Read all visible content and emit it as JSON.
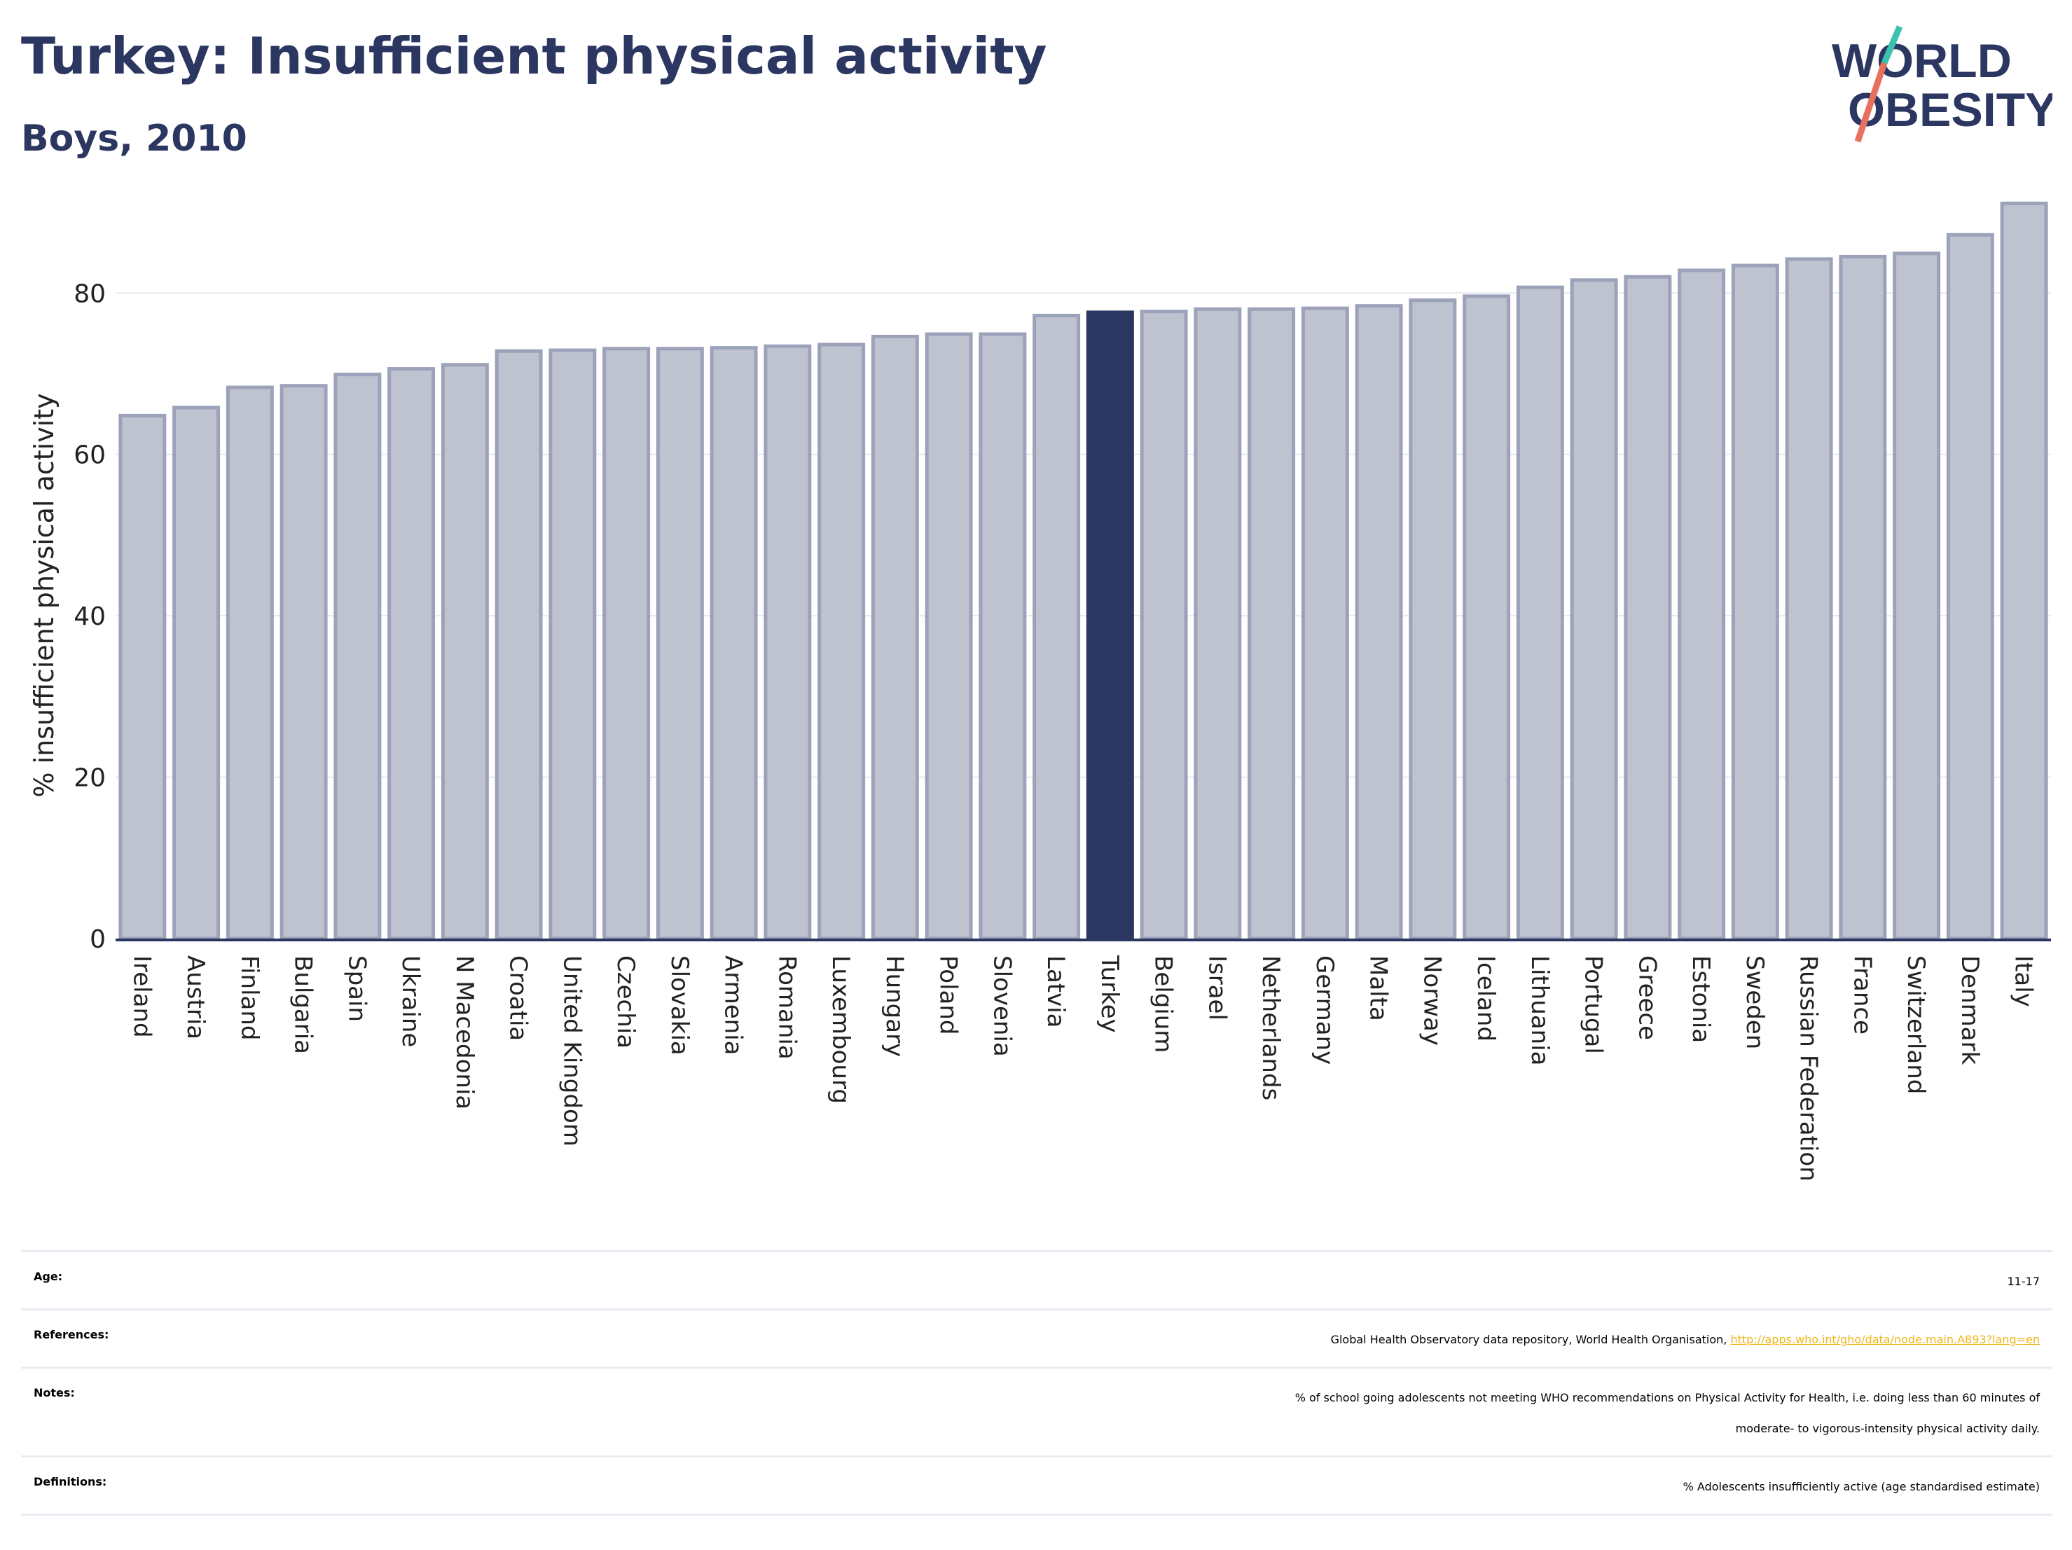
{
  "header": {
    "title": "Turkey: Insufficient physical activity",
    "subtitle": "Boys, 2010",
    "logo_line1": "WORLD",
    "logo_line2": "OBESITY"
  },
  "chart_data": {
    "type": "bar",
    "title": "Turkey: Insufficient physical activity",
    "subtitle": "Boys, 2010",
    "ylabel": "% insufficient physical activity",
    "xlabel": "",
    "ylim": [
      0,
      92
    ],
    "yticks": [
      0,
      20,
      40,
      60,
      80
    ],
    "grid": true,
    "highlight": "Turkey",
    "colors": {
      "bar": "#bfc2cf",
      "bar_border": "#9ca2b9",
      "highlight": "#2b3661",
      "grid": "#e6e8ee",
      "axis": "#2b3661"
    },
    "categories": [
      "Ireland",
      "Austria",
      "Finland",
      "Bulgaria",
      "Spain",
      "Ukraine",
      "N Macedonia",
      "Croatia",
      "United Kingdom",
      "Czechia",
      "Slovakia",
      "Armenia",
      "Romania",
      "Luxembourg",
      "Hungary",
      "Poland",
      "Slovenia",
      "Latvia",
      "Turkey",
      "Belgium",
      "Israel",
      "Netherlands",
      "Germany",
      "Malta",
      "Norway",
      "Iceland",
      "Lithuania",
      "Portugal",
      "Greece",
      "Estonia",
      "Sweden",
      "Russian Federation",
      "France",
      "Switzerland",
      "Denmark",
      "Italy"
    ],
    "values": [
      64.8,
      65.8,
      68.3,
      68.5,
      69.9,
      70.6,
      71.1,
      72.8,
      72.9,
      73.1,
      73.1,
      73.2,
      73.4,
      73.6,
      74.6,
      74.9,
      74.9,
      77.2,
      77.6,
      77.7,
      78.0,
      78.0,
      78.1,
      78.4,
      79.1,
      79.6,
      80.7,
      81.6,
      82.0,
      82.8,
      83.4,
      84.2,
      84.5,
      84.9,
      87.2,
      91.1
    ]
  },
  "meta": {
    "age_label": "Age:",
    "age_value": "11-17",
    "references_label": "References:",
    "references_text": "Global Health Observatory data repository, World Health Organisation,",
    "references_link": "http://apps.who.int/gho/data/node.main.A893?lang=en",
    "notes_label": "Notes:",
    "notes_line1": "% of school going adolescents not meeting WHO recommendations on Physical Activity for Health, i.e. doing less than 60 minutes of",
    "notes_line2": "moderate- to vigorous-intensity physical activity daily.",
    "definitions_label": "Definitions:",
    "definitions_value": "% Adolescents insufficiently active (age standardised estimate)"
  }
}
